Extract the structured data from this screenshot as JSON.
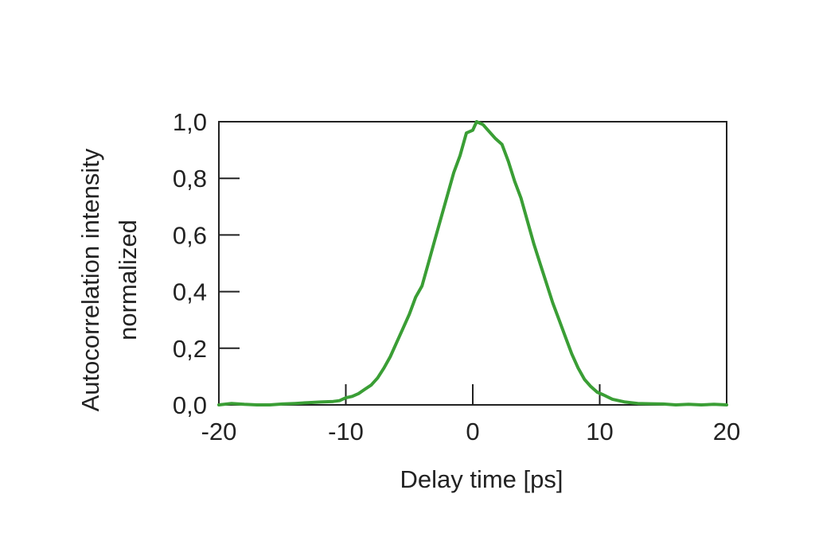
{
  "chart_data": {
    "type": "line",
    "xlabel": "Delay time [ps]",
    "ylabel_lines": [
      "Autocorrelation intensity",
      "normalized"
    ],
    "xlim": [
      -20,
      20
    ],
    "ylim": [
      0,
      1
    ],
    "x_ticks": [
      {
        "value": -20,
        "label": "-20"
      },
      {
        "value": -10,
        "label": "-10"
      },
      {
        "value": 0,
        "label": "0"
      },
      {
        "value": 10,
        "label": "10"
      },
      {
        "value": 20,
        "label": "20"
      }
    ],
    "y_ticks": [
      {
        "value": 0.0,
        "label": "0,0"
      },
      {
        "value": 0.2,
        "label": "0,2"
      },
      {
        "value": 0.4,
        "label": "0,4"
      },
      {
        "value": 0.6,
        "label": "0,6"
      },
      {
        "value": 0.8,
        "label": "0,8"
      },
      {
        "value": 1.0,
        "label": "1,0"
      }
    ],
    "grid": false,
    "series": [
      {
        "color": "#3a9e35",
        "points": [
          [
            -20,
            0.0
          ],
          [
            -19,
            0.005
          ],
          [
            -18,
            0.002
          ],
          [
            -17,
            0.0
          ],
          [
            -16,
            0.0
          ],
          [
            -15,
            0.003
          ],
          [
            -14,
            0.005
          ],
          [
            -13,
            0.008
          ],
          [
            -12,
            0.01
          ],
          [
            -11,
            0.012
          ],
          [
            -10.5,
            0.015
          ],
          [
            -10,
            0.025
          ],
          [
            -9.5,
            0.03
          ],
          [
            -9,
            0.04
          ],
          [
            -8.5,
            0.055
          ],
          [
            -8,
            0.07
          ],
          [
            -7.5,
            0.095
          ],
          [
            -7,
            0.13
          ],
          [
            -6.5,
            0.17
          ],
          [
            -6,
            0.22
          ],
          [
            -5.5,
            0.27
          ],
          [
            -5,
            0.32
          ],
          [
            -4.5,
            0.38
          ],
          [
            -4,
            0.42
          ],
          [
            -3.5,
            0.5
          ],
          [
            -3,
            0.58
          ],
          [
            -2.5,
            0.66
          ],
          [
            -2,
            0.74
          ],
          [
            -1.5,
            0.82
          ],
          [
            -1,
            0.88
          ],
          [
            -0.5,
            0.96
          ],
          [
            0,
            0.97
          ],
          [
            0.3,
            1.0
          ],
          [
            0.8,
            0.99
          ],
          [
            1.2,
            0.97
          ],
          [
            1.8,
            0.94
          ],
          [
            2.3,
            0.92
          ],
          [
            2.8,
            0.86
          ],
          [
            3.3,
            0.79
          ],
          [
            3.8,
            0.73
          ],
          [
            4.3,
            0.65
          ],
          [
            4.8,
            0.57
          ],
          [
            5.3,
            0.5
          ],
          [
            5.8,
            0.43
          ],
          [
            6.3,
            0.36
          ],
          [
            6.8,
            0.3
          ],
          [
            7.3,
            0.24
          ],
          [
            7.8,
            0.18
          ],
          [
            8.3,
            0.13
          ],
          [
            8.8,
            0.09
          ],
          [
            9.3,
            0.065
          ],
          [
            9.8,
            0.045
          ],
          [
            10.3,
            0.035
          ],
          [
            11,
            0.02
          ],
          [
            12,
            0.01
          ],
          [
            13,
            0.005
          ],
          [
            14,
            0.004
          ],
          [
            15,
            0.003
          ],
          [
            16,
            0.0
          ],
          [
            17,
            0.002
          ],
          [
            18,
            0.0
          ],
          [
            19,
            0.002
          ],
          [
            20,
            0.0
          ]
        ]
      }
    ]
  }
}
